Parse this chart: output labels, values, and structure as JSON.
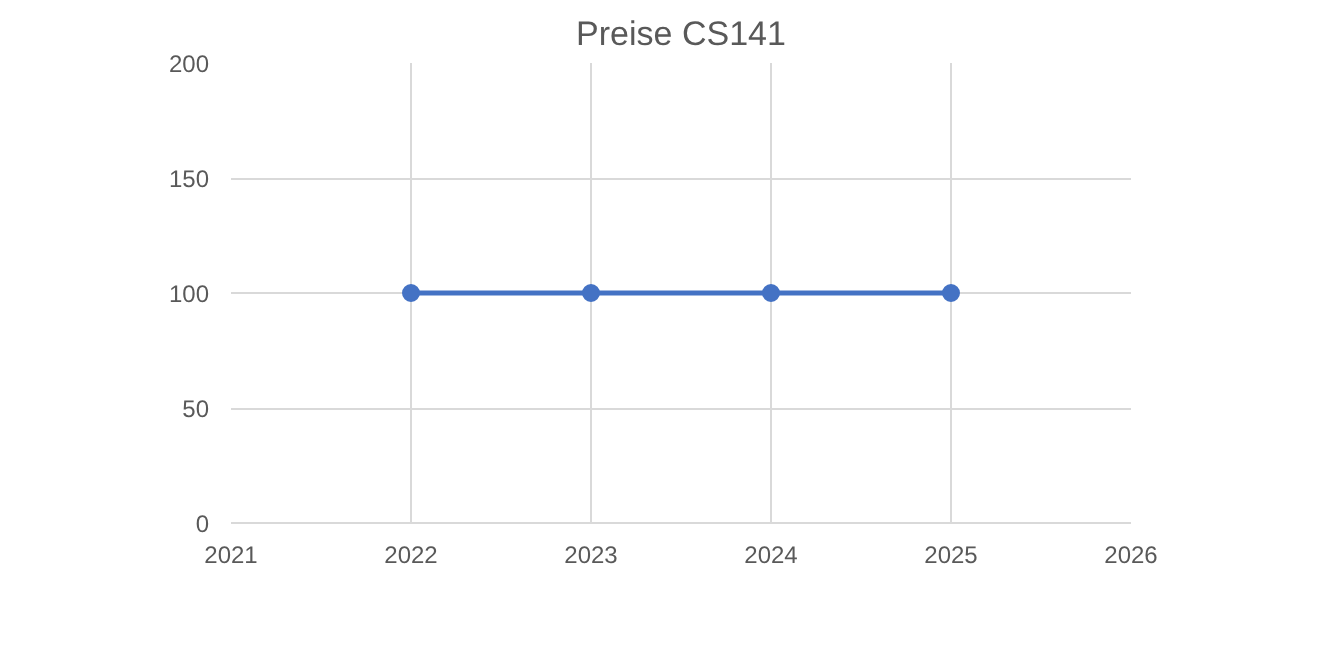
{
  "chart_data": {
    "type": "line",
    "title": "Preise CS141",
    "x": [
      2022,
      2023,
      2024,
      2025
    ],
    "series": [
      {
        "color": "#4472c4",
        "values": [
          100,
          100,
          100,
          100
        ]
      }
    ],
    "xlim": [
      2021,
      2026
    ],
    "xticks": [
      2021,
      2022,
      2023,
      2024,
      2025,
      2026
    ],
    "ylim": [
      0,
      200
    ],
    "yticks": [
      0,
      50,
      100,
      150,
      200
    ],
    "grid": true,
    "marker": "circle",
    "line_style": "solid"
  }
}
